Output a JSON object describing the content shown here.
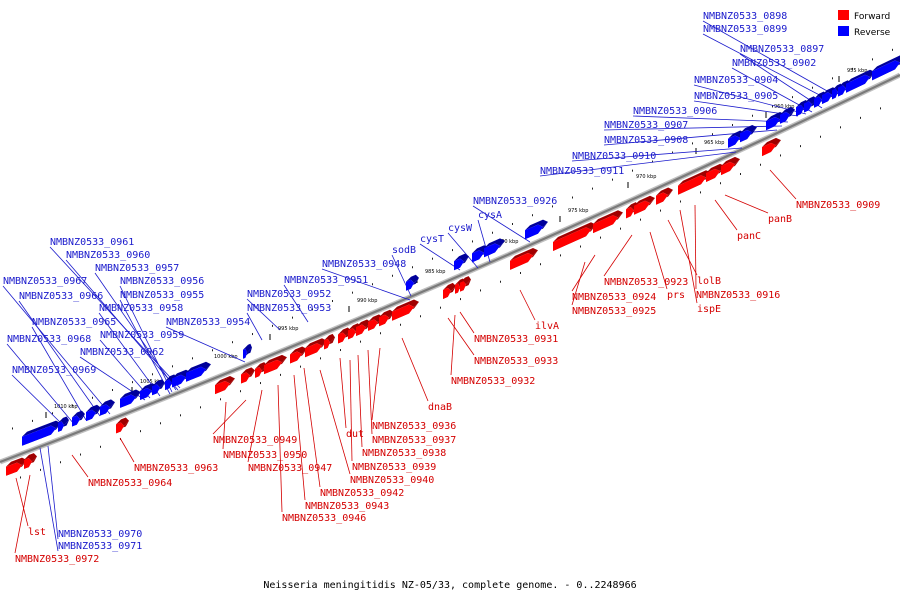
{
  "caption": "Neisseria meningitidis NZ-05/33, complete genome. - 0..2248966",
  "legend": [
    {
      "label": "Forward",
      "color": "#ff0000"
    },
    {
      "label": "Reverse",
      "color": "#0000ff"
    }
  ],
  "colors": {
    "forward": "#ff0000",
    "reverse": "#0000ff",
    "forward_shade": "#a00000",
    "reverse_shade": "#00009a",
    "backbone": "#808080",
    "forward_label": "#d40000",
    "reverse_label": "#1a1acc"
  },
  "ticks": [
    "955 kbp",
    "960 kbp",
    "965 kbp",
    "970 kbp",
    "975 kbp",
    "980 kbp",
    "985 kbp",
    "990 kbp",
    "995 kbp",
    "1000 kbp",
    "1005 kbp",
    "1010 kbp"
  ],
  "forward_labels": [
    "NMBNZ0533_0909",
    "panB",
    "panC",
    "NMBNZ0533_0916",
    "ispE",
    "lolB",
    "prs",
    "NMBNZ0533_0923",
    "NMBNZ0533_0924",
    "NMBNZ0533_0925",
    "ilvA",
    "NMBNZ0533_0931",
    "NMBNZ0533_0933",
    "NMBNZ0533_0932",
    "dnaB",
    "NMBNZ0533_0936",
    "NMBNZ0533_0937",
    "dut",
    "NMBNZ0533_0938",
    "NMBNZ0533_0939",
    "NMBNZ0533_0940",
    "NMBNZ0533_0942",
    "NMBNZ0533_0943",
    "NMBNZ0533_0946",
    "NMBNZ0533_0947",
    "NMBNZ0533_0949",
    "NMBNZ0533_0950",
    "NMBNZ0533_0963",
    "NMBNZ0533_0964",
    "lst",
    "NMBNZ0533_0972"
  ],
  "reverse_labels": [
    "NMBNZ0533_0898",
    "NMBNZ0533_0899",
    "NMBNZ0533_0897",
    "NMBNZ0533_0902",
    "NMBNZ0533_0904",
    "NMBNZ0533_0905",
    "NMBNZ0533_0906",
    "NMBNZ0533_0907",
    "NMBNZ0533_0908",
    "NMBNZ0533_0910",
    "NMBNZ0533_0911",
    "NMBNZ0533_0926",
    "cysA",
    "cysW",
    "cysT",
    "sodB",
    "NMBNZ0533_0948",
    "NMBNZ0533_0951",
    "NMBNZ0533_0952",
    "NMBNZ0533_0953",
    "NMBNZ0533_0954",
    "NMBNZ0533_0961",
    "NMBNZ0533_0960",
    "NMBNZ0533_0957",
    "NMBNZ0533_0956",
    "NMBNZ0533_0967",
    "NMBNZ0533_0955",
    "NMBNZ0533_0966",
    "NMBNZ0533_0958",
    "NMBNZ0533_0965",
    "NMBNZ0533_0959",
    "NMBNZ0533_0968",
    "NMBNZ0533_0962",
    "NMBNZ0533_0969",
    "NMBNZ0533_0970",
    "NMBNZ0533_0971"
  ]
}
